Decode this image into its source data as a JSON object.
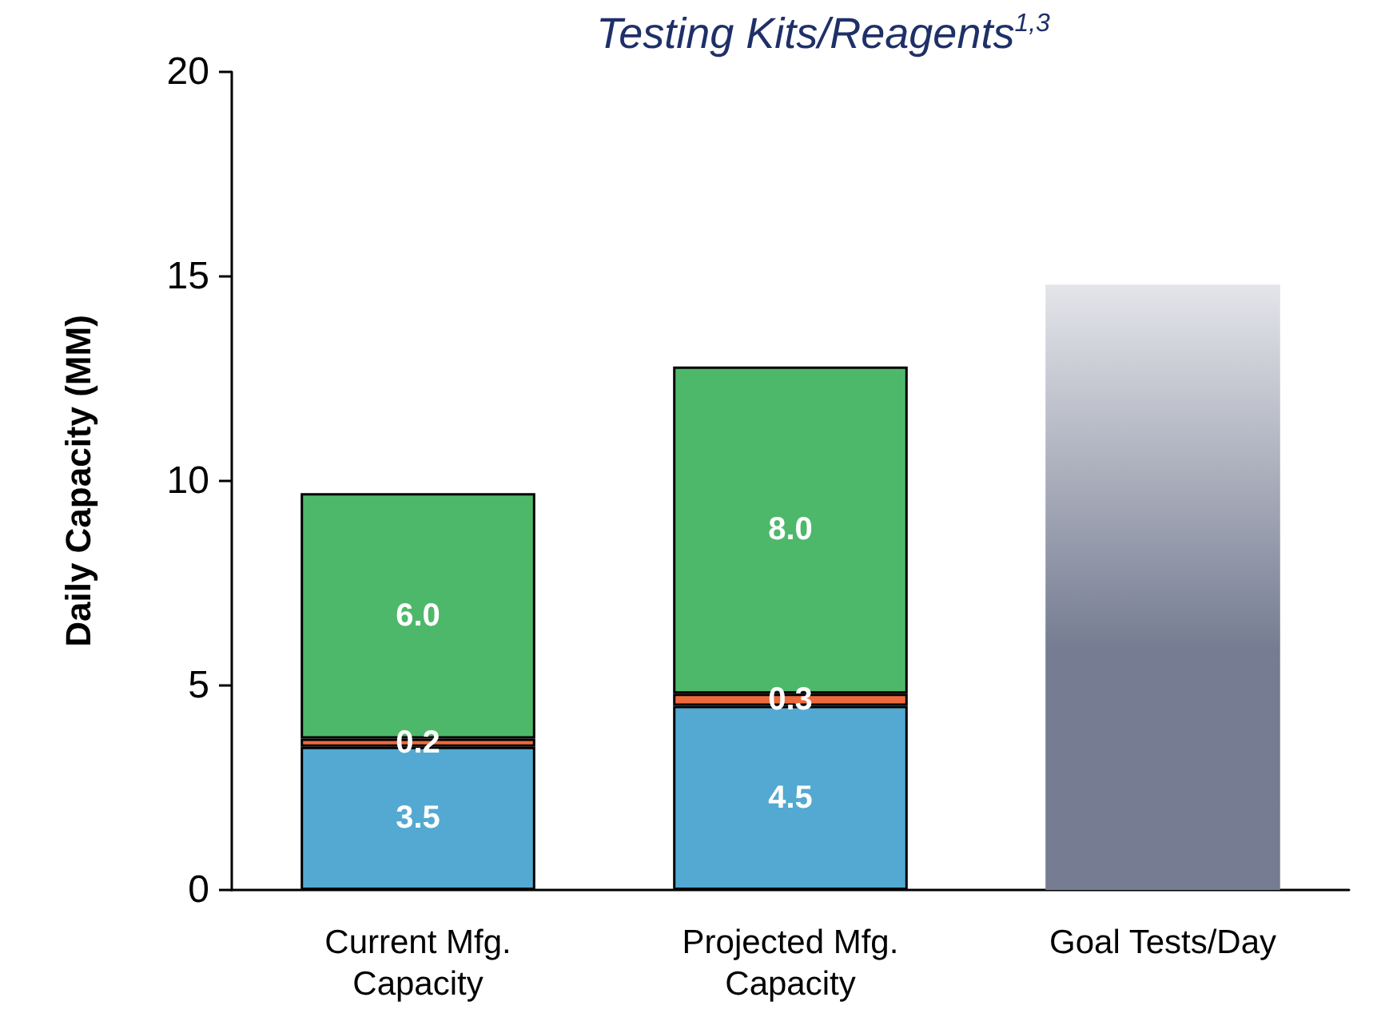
{
  "chart_data": {
    "type": "bar",
    "title": "Testing Kits/Reagents$^{1,3}$",
    "ylabel": "Daily Capacity (MM)",
    "categories": [
      "Current Mfg.\nCapacity",
      "Projected Mfg.\nCapacity",
      "Goal Tests/Day"
    ],
    "stacked": true,
    "series": [
      {
        "color": "#53a9d1",
        "values": [
          3.5,
          4.5,
          null
        ],
        "value_labels": [
          "3.5",
          "4.5",
          null
        ]
      },
      {
        "color": "#ee6a3c",
        "values": [
          0.2,
          0.3,
          null
        ],
        "value_labels": [
          "0.2",
          "0.3",
          null
        ]
      },
      {
        "color": "#4eb86a",
        "values": [
          6.0,
          8.0,
          null
        ],
        "value_labels": [
          "6.0",
          "8.0",
          null
        ]
      },
      {
        "color": "#767d92",
        "values": [
          null,
          null,
          14.8
        ]
      }
    ],
    "ylim": [
      0,
      20
    ],
    "yticks": [
      0,
      5,
      10,
      15,
      20
    ],
    "grid": false
  }
}
